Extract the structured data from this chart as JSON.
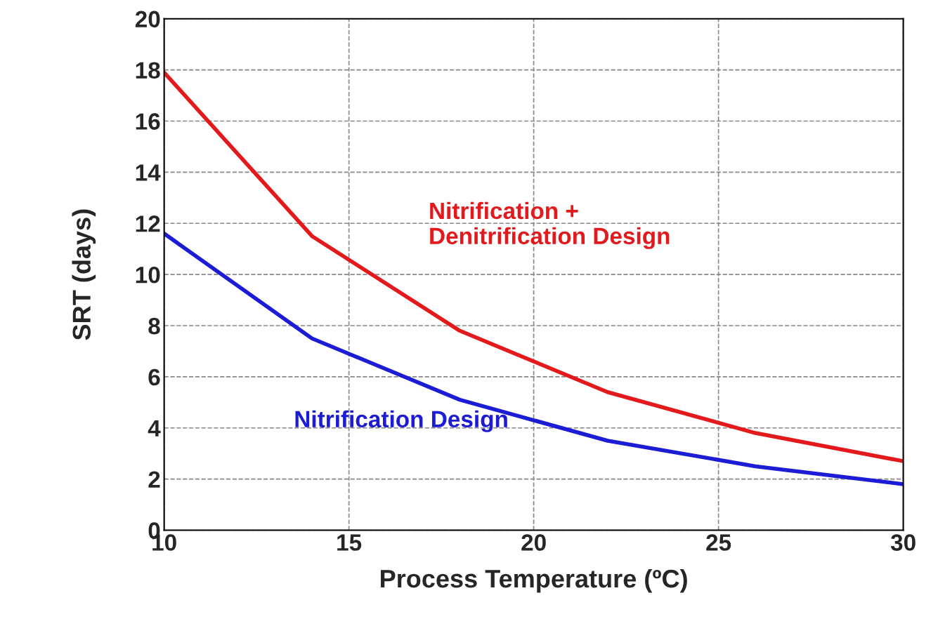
{
  "chart_data": {
    "type": "line",
    "xlabel": "Process Temperature (ºC)",
    "ylabel": "SRT (days)",
    "x": [
      10,
      14,
      18,
      22,
      26,
      30
    ],
    "series": [
      {
        "name": "Nitrification +\nDenitrification Design",
        "color": "#e3191c",
        "values": [
          17.9,
          11.5,
          7.8,
          5.4,
          3.8,
          2.7
        ]
      },
      {
        "name": "Nitrification Design",
        "color": "#1c1cd6",
        "values": [
          11.6,
          7.5,
          5.1,
          3.5,
          2.5,
          1.8
        ]
      }
    ],
    "xlim": [
      10,
      30
    ],
    "xticks": [
      10,
      15,
      20,
      25,
      30
    ],
    "ylim": [
      0,
      20
    ],
    "yticks": [
      0,
      2,
      4,
      6,
      8,
      10,
      12,
      14,
      16,
      18,
      20
    ],
    "grid": true,
    "marker": "none",
    "line_style": "solid",
    "legend": false
  }
}
